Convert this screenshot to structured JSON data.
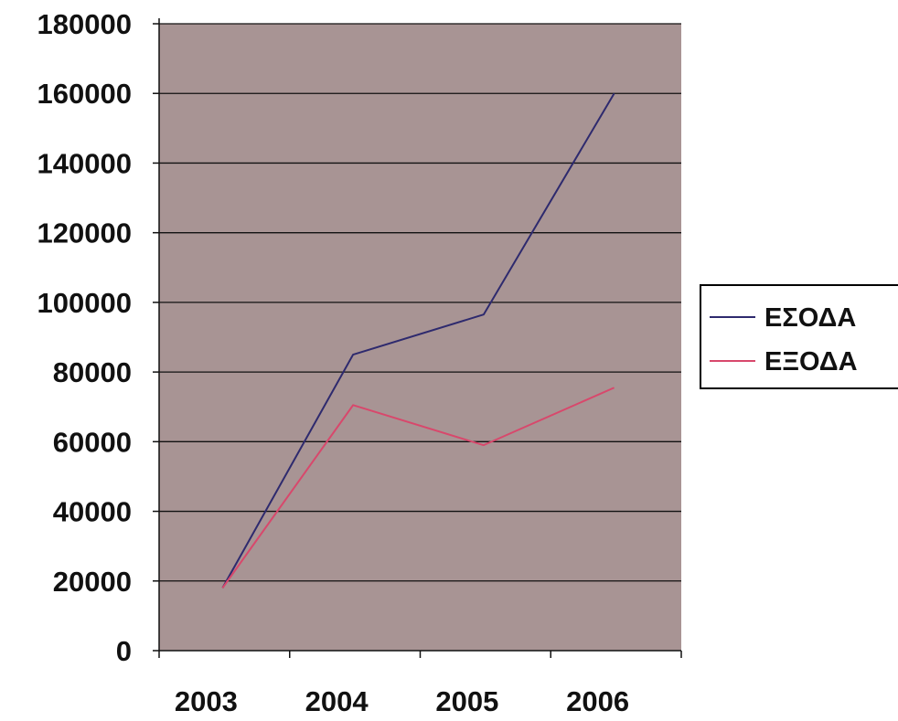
{
  "chart_data": {
    "type": "line",
    "title": "",
    "xlabel": "",
    "ylabel": "",
    "categories": [
      "2003",
      "2004",
      "2005",
      "2006"
    ],
    "ylim": [
      0,
      180000
    ],
    "yticks": [
      0,
      20000,
      40000,
      60000,
      80000,
      100000,
      120000,
      140000,
      160000,
      180000
    ],
    "grid": true,
    "legend_position": "right",
    "plot_background": "#a89494",
    "series": [
      {
        "name": "ΕΣΟΔΑ",
        "color": "#2e2a6e",
        "values": [
          18000,
          85000,
          96500,
          160000
        ]
      },
      {
        "name": "ΕΞΟΔΑ",
        "color": "#d8486c",
        "values": [
          18000,
          70500,
          59000,
          75500
        ]
      }
    ]
  }
}
